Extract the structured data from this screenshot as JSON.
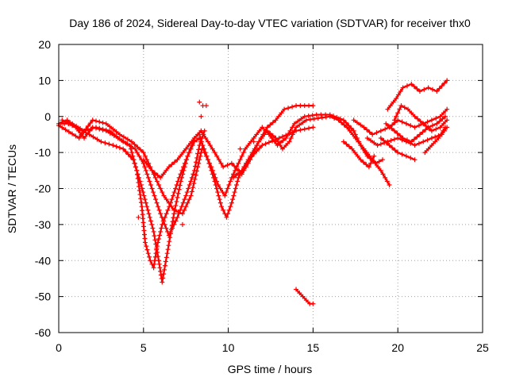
{
  "chart_data": {
    "type": "scatter",
    "title": "Day 186 of 2024, Sidereal Day-to-day VTEC variation (SDTVAR) for receiver thx0",
    "xlabel": "GPS time / hours",
    "ylabel": "SDTVAR / TECUs",
    "xlim": [
      0,
      25
    ],
    "ylim": [
      -60,
      20
    ],
    "xticks": [
      "0",
      "5",
      "10",
      "15",
      "20",
      "25"
    ],
    "yticks": [
      "20",
      "10",
      "0",
      "-10",
      "-20",
      "-30",
      "-40",
      "-50",
      "-60"
    ],
    "grid": true,
    "marker": "plus",
    "color": "#ff0000",
    "series": [
      {
        "name": "track-1",
        "points": [
          [
            0,
            -2
          ],
          [
            0.5,
            -1
          ],
          [
            1,
            -3
          ],
          [
            1.5,
            -6
          ],
          [
            2,
            -3
          ],
          [
            2.8,
            -4
          ],
          [
            3.5,
            -6
          ],
          [
            4.2,
            -8
          ],
          [
            4.6,
            -15
          ],
          [
            4.9,
            -25
          ],
          [
            5.1,
            -35
          ],
          [
            5.4,
            -40
          ],
          [
            5.6,
            -42
          ],
          [
            5.8,
            -36
          ],
          [
            6.1,
            -30
          ],
          [
            6.6,
            -24
          ],
          [
            7.1,
            -17
          ],
          [
            7.6,
            -11
          ],
          [
            8.0,
            -7
          ],
          [
            8.3,
            -6
          ]
        ]
      },
      {
        "name": "track-2",
        "points": [
          [
            0.2,
            -1
          ],
          [
            1,
            -3
          ],
          [
            1.8,
            -5
          ],
          [
            2.5,
            -7
          ],
          [
            3.2,
            -8
          ],
          [
            3.8,
            -9
          ],
          [
            4.4,
            -12
          ],
          [
            4.8,
            -18
          ],
          [
            5.2,
            -25
          ],
          [
            5.6,
            -32
          ],
          [
            5.9,
            -40
          ],
          [
            6.1,
            -46
          ],
          [
            6.4,
            -38
          ],
          [
            6.8,
            -27
          ],
          [
            7.2,
            -18
          ],
          [
            7.6,
            -11
          ],
          [
            8.0,
            -6
          ],
          [
            8.4,
            -4
          ]
        ]
      },
      {
        "name": "track-3",
        "points": [
          [
            0.1,
            -2
          ],
          [
            0.8,
            -2
          ],
          [
            1.5,
            -4
          ],
          [
            2.2,
            -3
          ],
          [
            3,
            -4
          ],
          [
            3.8,
            -7
          ],
          [
            4.5,
            -9
          ],
          [
            5,
            -13
          ],
          [
            5.5,
            -20
          ],
          [
            6,
            -27
          ],
          [
            6.5,
            -33
          ],
          [
            7,
            -28
          ],
          [
            7.5,
            -22
          ],
          [
            8,
            -15
          ],
          [
            8.3,
            -8
          ],
          [
            8.6,
            -4
          ]
        ]
      },
      {
        "name": "track-4",
        "points": [
          [
            0,
            -2.5
          ],
          [
            1.2,
            -6
          ],
          [
            2,
            -1
          ],
          [
            2.8,
            -2
          ],
          [
            3.6,
            -5
          ],
          [
            4.3,
            -7
          ],
          [
            5.0,
            -10
          ],
          [
            5.6,
            -16
          ],
          [
            6.2,
            -22
          ],
          [
            6.8,
            -26
          ],
          [
            7.3,
            -27
          ],
          [
            7.8,
            -22
          ],
          [
            8.2,
            -14
          ],
          [
            8.5,
            -8
          ],
          [
            8.8,
            -12
          ],
          [
            9.2,
            -18
          ],
          [
            9.6,
            -25
          ],
          [
            9.9,
            -28
          ],
          [
            10.2,
            -24
          ],
          [
            10.6,
            -17
          ],
          [
            11.2,
            -12
          ],
          [
            12,
            -8
          ],
          [
            13,
            -6
          ],
          [
            14,
            -4
          ],
          [
            15,
            -3
          ]
        ]
      },
      {
        "name": "track-5",
        "points": [
          [
            5.0,
            -12
          ],
          [
            5.5,
            -15
          ],
          [
            6.0,
            -17
          ],
          [
            6.5,
            -14
          ],
          [
            7.0,
            -12
          ],
          [
            7.5,
            -9
          ],
          [
            8.0,
            -6
          ],
          [
            8.4,
            -4
          ],
          [
            8.8,
            -7
          ],
          [
            9.2,
            -10
          ],
          [
            9.7,
            -14
          ],
          [
            10.2,
            -13
          ],
          [
            10.8,
            -16
          ],
          [
            11.3,
            -12
          ],
          [
            11.8,
            -7
          ],
          [
            12.3,
            -3
          ],
          [
            12.8,
            -1
          ],
          [
            13.3,
            2
          ],
          [
            14,
            3
          ],
          [
            15,
            3
          ]
        ]
      },
      {
        "name": "track-6",
        "points": [
          [
            8.3,
            -5
          ],
          [
            8.6,
            -10
          ],
          [
            9,
            -14
          ],
          [
            9.4,
            -19
          ],
          [
            9.8,
            -22
          ],
          [
            10.2,
            -17
          ],
          [
            10.6,
            -13
          ],
          [
            11.0,
            -9
          ],
          [
            11.5,
            -6
          ],
          [
            12.0,
            -3
          ],
          [
            12.4,
            -5
          ],
          [
            12.9,
            -8
          ],
          [
            13.4,
            -6
          ],
          [
            13.9,
            -2
          ],
          [
            14.5,
            0
          ],
          [
            15.2,
            0.5
          ],
          [
            16,
            0.5
          ],
          [
            16.8,
            -1
          ],
          [
            17.4,
            -4
          ],
          [
            17.8,
            -8
          ],
          [
            18.2,
            -11
          ],
          [
            18.7,
            -13
          ],
          [
            19.1,
            -12
          ]
        ]
      },
      {
        "name": "track-7",
        "points": [
          [
            10.3,
            -17
          ],
          [
            10.8,
            -15
          ],
          [
            11.3,
            -11
          ],
          [
            11.8,
            -7
          ],
          [
            12.3,
            -4
          ],
          [
            12.8,
            -6
          ],
          [
            13.2,
            -9
          ],
          [
            13.6,
            -7
          ],
          [
            14.0,
            -3
          ],
          [
            14.6,
            -1
          ],
          [
            15.3,
            -0.5
          ],
          [
            16,
            0
          ],
          [
            16.5,
            -1
          ],
          [
            17,
            -3
          ],
          [
            17.5,
            -6
          ],
          [
            18,
            -9
          ],
          [
            18.5,
            -12
          ],
          [
            19,
            -15
          ],
          [
            19.5,
            -19
          ]
        ]
      },
      {
        "name": "track-8",
        "points": [
          [
            16.8,
            -7
          ],
          [
            17.3,
            -9
          ],
          [
            17.8,
            -12
          ],
          [
            18.3,
            -14
          ],
          [
            18.6,
            -11
          ]
        ]
      },
      {
        "name": "track-9",
        "points": [
          [
            17.4,
            -1
          ],
          [
            18,
            -3
          ],
          [
            18.5,
            -5
          ],
          [
            19,
            -4
          ],
          [
            19.5,
            -3
          ],
          [
            20,
            -1
          ],
          [
            20.5,
            -2
          ],
          [
            21,
            -3
          ],
          [
            21.5,
            -2
          ],
          [
            22,
            -4
          ],
          [
            22.5,
            -3
          ],
          [
            22.9,
            -1
          ]
        ]
      },
      {
        "name": "track-10",
        "points": [
          [
            19.3,
            -2
          ],
          [
            19.8,
            -4
          ],
          [
            20.3,
            -6
          ],
          [
            20.8,
            -7
          ],
          [
            21.3,
            -5
          ],
          [
            21.8,
            -3
          ],
          [
            22.3,
            -2
          ],
          [
            22.8,
            0
          ]
        ]
      },
      {
        "name": "track-11",
        "points": [
          [
            18.2,
            -6
          ],
          [
            18.8,
            -8
          ],
          [
            19.4,
            -7
          ],
          [
            20,
            -6
          ],
          [
            20.5,
            -7
          ],
          [
            21,
            -8
          ],
          [
            21.5,
            -7
          ],
          [
            22,
            -6
          ],
          [
            22.6,
            -5
          ],
          [
            22.9,
            -3
          ]
        ]
      },
      {
        "name": "track-12",
        "points": [
          [
            19.0,
            -6
          ],
          [
            19.5,
            -8
          ],
          [
            20,
            -10
          ],
          [
            20.5,
            -11
          ],
          [
            21.0,
            -12
          ]
        ]
      },
      {
        "name": "track-13",
        "points": [
          [
            19.4,
            2
          ],
          [
            19.9,
            5
          ],
          [
            20.3,
            8
          ],
          [
            20.8,
            9
          ],
          [
            21.3,
            7
          ],
          [
            21.8,
            8
          ],
          [
            22.3,
            7
          ],
          [
            22.9,
            10
          ]
        ]
      },
      {
        "name": "track-14",
        "points": [
          [
            19.8,
            -1
          ],
          [
            20.2,
            3
          ],
          [
            20.6,
            2
          ],
          [
            21.0,
            0
          ],
          [
            21.5,
            -2
          ],
          [
            22.0,
            -1
          ],
          [
            22.5,
            0
          ],
          [
            22.9,
            2
          ]
        ]
      },
      {
        "name": "track-15",
        "points": [
          [
            21.6,
            -10
          ],
          [
            22.0,
            -8
          ],
          [
            22.4,
            -6
          ],
          [
            22.8,
            -3
          ]
        ]
      },
      {
        "name": "track-16",
        "points": [
          [
            14.0,
            -48
          ],
          [
            14.4,
            -50
          ],
          [
            14.8,
            -52
          ],
          [
            15.0,
            -52
          ]
        ]
      }
    ],
    "scatter": [
      {
        "x": 8.3,
        "y": 4
      },
      {
        "x": 8.5,
        "y": 3
      },
      {
        "x": 8.7,
        "y": 3
      },
      {
        "x": 8.4,
        "y": 0
      },
      {
        "x": 11.5,
        "y": -7
      },
      {
        "x": 10.7,
        "y": -9
      },
      {
        "x": 6.9,
        "y": -29
      },
      {
        "x": 7.3,
        "y": -30
      },
      {
        "x": 4.7,
        "y": -28
      }
    ]
  }
}
